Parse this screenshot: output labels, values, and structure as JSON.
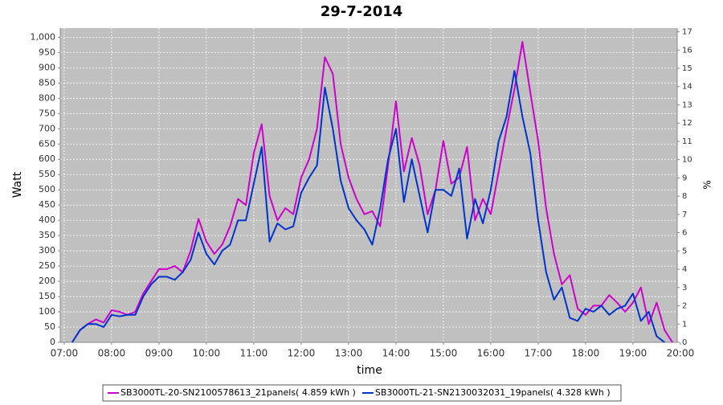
{
  "chart_data": {
    "type": "line",
    "title": "29-7-2014",
    "x_label": "time",
    "y_label": "Watt",
    "y2_label": "%",
    "x": [
      "07:10",
      "07:20",
      "07:30",
      "07:40",
      "07:50",
      "08:00",
      "08:10",
      "08:20",
      "08:30",
      "08:40",
      "08:50",
      "09:00",
      "09:10",
      "09:20",
      "09:30",
      "09:40",
      "09:50",
      "10:00",
      "10:10",
      "10:20",
      "10:30",
      "10:40",
      "10:50",
      "11:00",
      "11:10",
      "11:20",
      "11:30",
      "11:40",
      "11:50",
      "12:00",
      "12:10",
      "12:20",
      "12:30",
      "12:40",
      "12:50",
      "13:00",
      "13:10",
      "13:20",
      "13:30",
      "13:40",
      "13:50",
      "14:00",
      "14:10",
      "14:20",
      "14:30",
      "14:40",
      "14:50",
      "15:00",
      "15:10",
      "15:20",
      "15:30",
      "15:40",
      "15:50",
      "16:00",
      "16:10",
      "16:20",
      "16:30",
      "16:40",
      "16:50",
      "17:00",
      "17:10",
      "17:20",
      "17:30",
      "17:40",
      "17:50",
      "18:00",
      "18:10",
      "18:20",
      "18:30",
      "18:40",
      "18:50",
      "19:00",
      "19:10",
      "19:20",
      "19:30",
      "19:40",
      "19:50"
    ],
    "series": [
      {
        "name": "SB3000TL-20-SN2100578613_21panels( 4.859 kWh )",
        "color": "#cc00cc",
        "values": [
          0,
          40,
          60,
          75,
          65,
          105,
          100,
          90,
          100,
          160,
          200,
          240,
          240,
          250,
          230,
          300,
          405,
          330,
          290,
          320,
          380,
          470,
          450,
          620,
          715,
          480,
          400,
          440,
          420,
          540,
          600,
          700,
          935,
          880,
          650,
          540,
          470,
          420,
          430,
          380,
          580,
          790,
          560,
          670,
          580,
          420,
          500,
          660,
          520,
          540,
          640,
          400,
          470,
          420,
          560,
          700,
          830,
          985,
          820,
          660,
          440,
          290,
          190,
          220,
          110,
          90,
          120,
          120,
          155,
          130,
          100,
          130,
          180,
          60,
          130,
          40,
          0
        ]
      },
      {
        "name": "SB3000TL-21-SN2130032031_19panels( 4.328 kWh )",
        "color": "#0033cc",
        "values": [
          0,
          40,
          60,
          60,
          50,
          90,
          85,
          90,
          90,
          150,
          190,
          215,
          215,
          205,
          230,
          270,
          360,
          290,
          255,
          300,
          320,
          400,
          400,
          520,
          640,
          330,
          390,
          370,
          380,
          490,
          540,
          580,
          835,
          700,
          530,
          440,
          400,
          370,
          320,
          440,
          600,
          700,
          460,
          600,
          480,
          360,
          500,
          500,
          480,
          570,
          340,
          470,
          390,
          500,
          660,
          740,
          890,
          740,
          620,
          400,
          230,
          140,
          180,
          80,
          70,
          110,
          100,
          120,
          90,
          110,
          120,
          160,
          70,
          100,
          20,
          0,
          null
        ]
      }
    ],
    "xlim": [
      "06:55",
      "19:56"
    ],
    "xticks": [
      "07:00",
      "08:00",
      "09:00",
      "10:00",
      "11:00",
      "12:00",
      "13:00",
      "14:00",
      "15:00",
      "16:00",
      "17:00",
      "18:00",
      "19:00",
      "20:00"
    ],
    "ylim": [
      0,
      1030
    ],
    "yticks": [
      0,
      50,
      100,
      150,
      200,
      250,
      300,
      350,
      400,
      450,
      500,
      550,
      600,
      650,
      700,
      750,
      800,
      850,
      900,
      950,
      {
        "value": 1000,
        "label": "1,000"
      }
    ],
    "y2lim": [
      0,
      17.2
    ],
    "y2ticks": [
      0,
      1,
      2,
      3,
      4,
      5,
      6,
      7,
      8,
      9,
      10,
      11,
      12,
      13,
      14,
      15,
      16,
      17
    ],
    "grid": true
  }
}
